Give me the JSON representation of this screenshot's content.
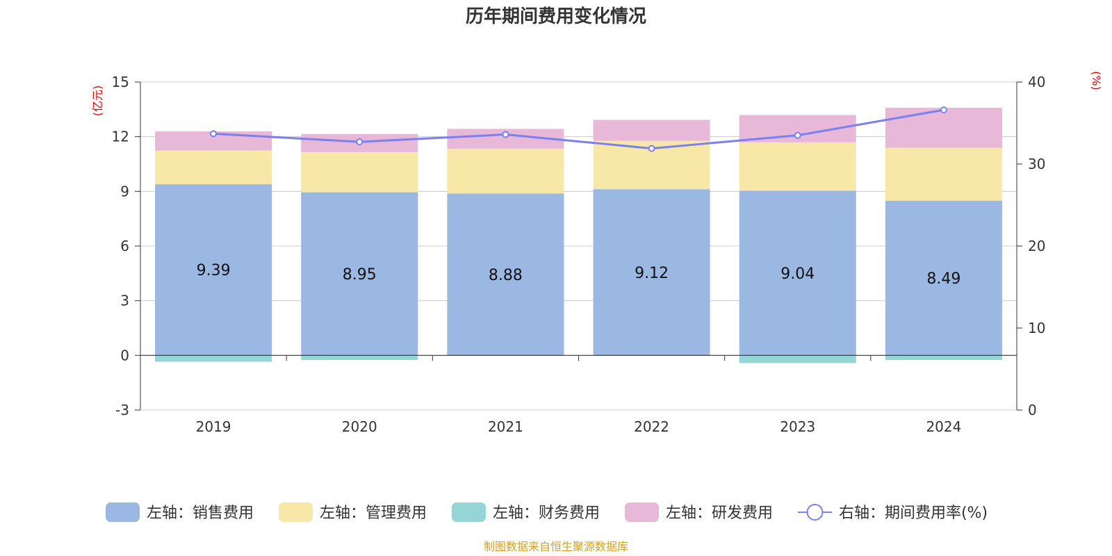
{
  "chart_data": {
    "type": "bar",
    "title": "历年期间费用变化情况",
    "categories": [
      "2019",
      "2020",
      "2021",
      "2022",
      "2023",
      "2024"
    ],
    "series": [
      {
        "name": "左轴：销售费用",
        "axis": "left",
        "kind": "bar",
        "color": "#9bb8e2",
        "values": [
          9.39,
          8.95,
          8.88,
          9.12,
          9.04,
          8.49
        ],
        "show_labels": true
      },
      {
        "name": "左轴：管理费用",
        "axis": "left",
        "kind": "bar",
        "color": "#f8e8a8",
        "values": [
          1.85,
          2.2,
          2.45,
          2.65,
          2.65,
          2.9
        ],
        "show_labels": false
      },
      {
        "name": "左轴：财务费用",
        "axis": "left",
        "kind": "bar",
        "color": "#95d5d5",
        "values": [
          -0.35,
          -0.25,
          -0.02,
          -0.02,
          -0.42,
          -0.25
        ],
        "show_labels": false
      },
      {
        "name": "左轴：研发费用",
        "axis": "left",
        "kind": "bar",
        "color": "#e8b8d8",
        "values": [
          1.05,
          1.0,
          1.1,
          1.15,
          1.5,
          2.2
        ],
        "show_labels": false
      },
      {
        "name": "右轴：期间费用率(%)",
        "axis": "right",
        "kind": "line",
        "color": "#7b7ff0",
        "values": [
          33.7,
          32.7,
          33.6,
          31.9,
          33.5,
          36.6
        ]
      }
    ],
    "left_axis": {
      "label": "(亿元)",
      "ylim": [
        -3,
        15
      ],
      "ticks": [
        -3,
        0,
        3,
        6,
        9,
        12,
        15
      ]
    },
    "right_axis": {
      "label": "(%)",
      "ylim": [
        0,
        40
      ],
      "ticks": [
        0,
        10,
        20,
        30,
        40
      ]
    },
    "grid": true,
    "legend_position": "bottom"
  },
  "source_note": "制图数据来自恒生聚源数据库",
  "colors": {
    "axis_label": "#e60000",
    "source": "#d6a022",
    "grid": "#cccccc",
    "axis_line": "#333333"
  }
}
